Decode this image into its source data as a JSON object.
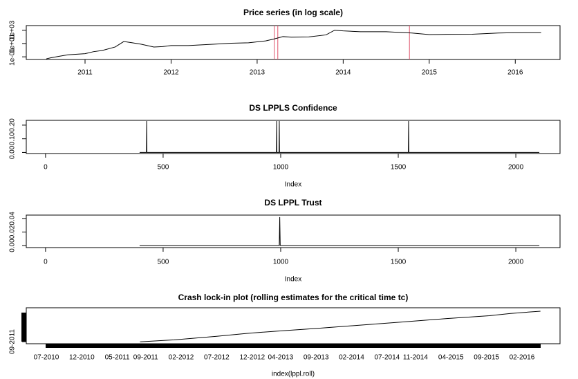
{
  "chart_data": [
    {
      "type": "line",
      "title": "Price series (in log scale)",
      "log_y": true,
      "color": "#000000",
      "x": [
        2010.55,
        2010.6,
        2010.7,
        2010.8,
        2011.0,
        2011.1,
        2011.2,
        2011.35,
        2011.45,
        2011.55,
        2011.65,
        2011.8,
        2011.9,
        2012.0,
        2012.2,
        2012.5,
        2012.7,
        2012.9,
        2013.1,
        2013.2,
        2013.3,
        2013.4,
        2013.6,
        2013.8,
        2013.9,
        2014.0,
        2014.2,
        2014.5,
        2014.8,
        2015.0,
        2015.2,
        2015.5,
        2015.8,
        2015.95,
        2016.3
      ],
      "values": [
        0.05,
        0.07,
        0.12,
        0.2,
        0.3,
        0.6,
        0.9,
        3,
        20,
        13,
        8,
        3,
        3.5,
        5,
        5,
        8,
        11,
        13,
        25,
        50,
        110,
        90,
        100,
        200,
        1000,
        800,
        600,
        600,
        380,
        220,
        240,
        250,
        380,
        420,
        430
      ],
      "xlim": [
        2010.317,
        2016.52
      ],
      "xticks": [
        2011,
        2012,
        2013,
        2014,
        2015,
        2016
      ],
      "ylim": [
        0.04,
        5000
      ],
      "yticks": [
        {
          "value": 0.1,
          "label": "1e-01"
        },
        {
          "value": 10,
          "label": "1e+01"
        },
        {
          "value": 1000,
          "label": "1e+03"
        }
      ],
      "vlines": [
        2013.2,
        2013.24,
        2014.77
      ],
      "vline_color": "#df536b"
    },
    {
      "type": "line",
      "title": "DS LPPLS Confidence",
      "x_label": "Index",
      "log_y": false,
      "color": "#000000",
      "x": [
        400,
        429,
        430,
        431,
        982,
        983,
        984,
        993,
        994,
        995,
        1543,
        1544,
        1545,
        2100
      ],
      "values": [
        0,
        0,
        0.23,
        0,
        0,
        0.23,
        0,
        0,
        0.23,
        0,
        0,
        0.23,
        0,
        0
      ],
      "xlim": [
        -82,
        2188
      ],
      "xticks": [
        0,
        500,
        1000,
        1500,
        2000
      ],
      "ylim": [
        -0.008,
        0.235
      ],
      "yticks": [
        {
          "value": 0,
          "label": "0.00"
        },
        {
          "value": 0.1,
          "label": "0.10"
        },
        {
          "value": 0.2,
          "label": "0.20"
        }
      ]
    },
    {
      "type": "line",
      "title": "DS LPPL Trust",
      "x_label": "Index",
      "log_y": false,
      "color": "#000000",
      "x": [
        400,
        994,
        996,
        998,
        2100
      ],
      "values": [
        0,
        0,
        0.042,
        0,
        0
      ],
      "xlim": [
        -82,
        2188
      ],
      "xticks": [
        0,
        500,
        1000,
        1500,
        2000
      ],
      "ylim": [
        -0.003,
        0.045
      ],
      "yticks": [
        {
          "value": 0,
          "label": "0.00"
        },
        {
          "value": 0.02,
          "label": "0.02"
        },
        {
          "value": 0.04,
          "label": "0.04"
        }
      ]
    },
    {
      "type": "line",
      "title": "Crash lock-in plot (rolling estimates for the critical time tc)",
      "x_label": "index(lppl.roll)",
      "log_y": false,
      "color": "#000000",
      "x": [
        2011.6,
        2012.0,
        2012.5,
        2012.85,
        2013.2,
        2013.7,
        2014.2,
        2014.7,
        2015.2,
        2015.7,
        2015.95,
        2016.3
      ],
      "values": [
        2011.65,
        2011.95,
        2012.5,
        2012.95,
        2013.3,
        2013.75,
        2014.25,
        2014.75,
        2015.25,
        2015.7,
        2016.05,
        2016.4
      ],
      "xlim": [
        2010.265,
        2016.53
      ],
      "xticks": [
        {
          "value": 2010.5,
          "label": "07-2010"
        },
        {
          "value": 2010.917,
          "label": "12-2010"
        },
        {
          "value": 2011.333,
          "label": "05-2011"
        },
        {
          "value": 2011.667,
          "label": "09-2011"
        },
        {
          "value": 2012.083,
          "label": "02-2012"
        },
        {
          "value": 2012.5,
          "label": "07-2012"
        },
        {
          "value": 2012.917,
          "label": "12-2012"
        },
        {
          "value": 2013.25,
          "label": "04-2013"
        },
        {
          "value": 2013.667,
          "label": "09-2013"
        },
        {
          "value": 2014.083,
          "label": "02-2014"
        },
        {
          "value": 2014.5,
          "label": "07-2014"
        },
        {
          "value": 2014.833,
          "label": "11-2014"
        },
        {
          "value": 2015.25,
          "label": "04-2015"
        },
        {
          "value": 2015.667,
          "label": "09-2015"
        },
        {
          "value": 2016.083,
          "label": "02-2016"
        }
      ],
      "ylim": [
        2011.35,
        2016.93
      ],
      "yticks": [
        {
          "value": 2011.667,
          "label": "09-2011"
        }
      ]
    }
  ]
}
